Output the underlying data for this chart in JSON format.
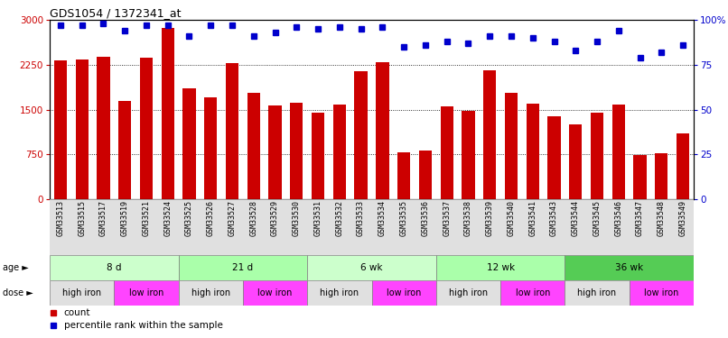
{
  "title": "GDS1054 / 1372341_at",
  "samples": [
    "GSM33513",
    "GSM33515",
    "GSM33517",
    "GSM33519",
    "GSM33521",
    "GSM33524",
    "GSM33525",
    "GSM33526",
    "GSM33527",
    "GSM33528",
    "GSM33529",
    "GSM33530",
    "GSM33531",
    "GSM33532",
    "GSM33533",
    "GSM33534",
    "GSM33535",
    "GSM33536",
    "GSM33537",
    "GSM33538",
    "GSM33539",
    "GSM33540",
    "GSM33541",
    "GSM33543",
    "GSM33544",
    "GSM33545",
    "GSM33546",
    "GSM33547",
    "GSM33548",
    "GSM33549"
  ],
  "counts": [
    2320,
    2340,
    2380,
    1640,
    2360,
    2870,
    1850,
    1700,
    2270,
    1780,
    1570,
    1620,
    1440,
    1590,
    2140,
    2290,
    790,
    820,
    1560,
    1480,
    2160,
    1780,
    1600,
    1380,
    1250,
    1450,
    1590,
    740,
    770,
    1100
  ],
  "percentiles": [
    97,
    97,
    98,
    94,
    97,
    97,
    91,
    97,
    97,
    91,
    93,
    96,
    95,
    96,
    95,
    96,
    85,
    86,
    88,
    87,
    91,
    91,
    90,
    88,
    83,
    88,
    94,
    79,
    82,
    86
  ],
  "bar_color": "#cc0000",
  "dot_color": "#0000cc",
  "ylim_left": [
    0,
    3000
  ],
  "ylim_right": [
    0,
    100
  ],
  "yticks_left": [
    0,
    750,
    1500,
    2250,
    3000
  ],
  "yticks_right": [
    0,
    25,
    50,
    75,
    100
  ],
  "age_groups": [
    {
      "label": "8 d",
      "start": 0,
      "end": 6,
      "color": "#ccffcc"
    },
    {
      "label": "21 d",
      "start": 6,
      "end": 12,
      "color": "#aaffaa"
    },
    {
      "label": "6 wk",
      "start": 12,
      "end": 18,
      "color": "#ccffcc"
    },
    {
      "label": "12 wk",
      "start": 18,
      "end": 24,
      "color": "#aaffaa"
    },
    {
      "label": "36 wk",
      "start": 24,
      "end": 30,
      "color": "#55cc55"
    }
  ],
  "dose_groups": [
    {
      "label": "high iron",
      "start": 0,
      "end": 3,
      "color": "#e0e0e0"
    },
    {
      "label": "low iron",
      "start": 3,
      "end": 6,
      "color": "#ff44ff"
    },
    {
      "label": "high iron",
      "start": 6,
      "end": 9,
      "color": "#e0e0e0"
    },
    {
      "label": "low iron",
      "start": 9,
      "end": 12,
      "color": "#ff44ff"
    },
    {
      "label": "high iron",
      "start": 12,
      "end": 15,
      "color": "#e0e0e0"
    },
    {
      "label": "low iron",
      "start": 15,
      "end": 18,
      "color": "#ff44ff"
    },
    {
      "label": "high iron",
      "start": 18,
      "end": 21,
      "color": "#e0e0e0"
    },
    {
      "label": "low iron",
      "start": 21,
      "end": 24,
      "color": "#ff44ff"
    },
    {
      "label": "high iron",
      "start": 24,
      "end": 27,
      "color": "#e0e0e0"
    },
    {
      "label": "low iron",
      "start": 27,
      "end": 30,
      "color": "#ff44ff"
    }
  ],
  "background_color": "#ffffff"
}
